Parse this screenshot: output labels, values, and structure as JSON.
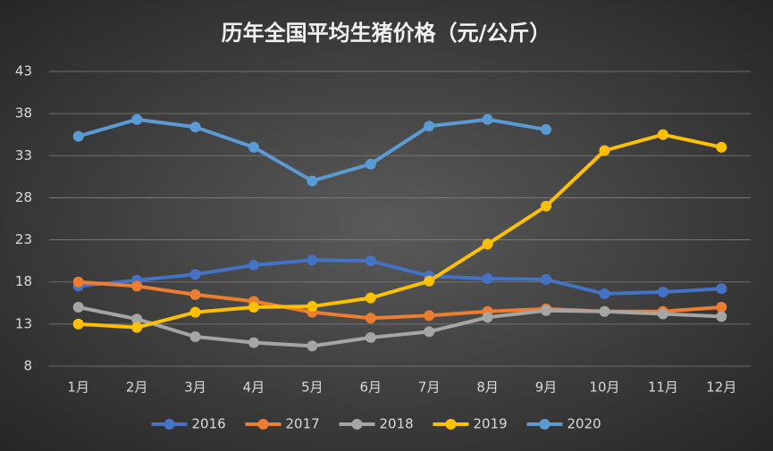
{
  "chart_data": {
    "type": "line",
    "title": "历年全国平均生猪价格（元/公斤）",
    "categories": [
      "1月",
      "2月",
      "3月",
      "4月",
      "5月",
      "6月",
      "7月",
      "8月",
      "9月",
      "10月",
      "11月",
      "12月"
    ],
    "series": [
      {
        "name": "2016",
        "color": "#4472c4",
        "values": [
          17.5,
          18.2,
          18.9,
          20.0,
          20.6,
          20.5,
          18.7,
          18.4,
          18.3,
          16.6,
          16.8,
          17.2
        ]
      },
      {
        "name": "2017",
        "color": "#ed7d31",
        "values": [
          18.0,
          17.5,
          16.5,
          15.7,
          14.4,
          13.7,
          14.0,
          14.5,
          14.8,
          14.5,
          14.5,
          15.0
        ]
      },
      {
        "name": "2018",
        "color": "#a5a5a5",
        "values": [
          15.0,
          13.6,
          11.5,
          10.8,
          10.4,
          11.4,
          12.1,
          13.8,
          14.6,
          14.5,
          14.2,
          13.9
        ]
      },
      {
        "name": "2019",
        "color": "#ffc000",
        "values": [
          13.0,
          12.6,
          14.4,
          15.0,
          15.1,
          16.1,
          18.1,
          22.5,
          27.0,
          33.6,
          35.5,
          34.0
        ]
      },
      {
        "name": "2020",
        "color": "#5b9bd5",
        "values": [
          35.3,
          37.3,
          36.4,
          34.0,
          30.0,
          32.0,
          36.5,
          37.3,
          36.1,
          null,
          null,
          null
        ]
      }
    ],
    "ylim": [
      8,
      43
    ],
    "yticks": [
      8,
      13,
      18,
      23,
      28,
      33,
      38,
      43
    ],
    "grid": true,
    "legend": "bottom"
  }
}
